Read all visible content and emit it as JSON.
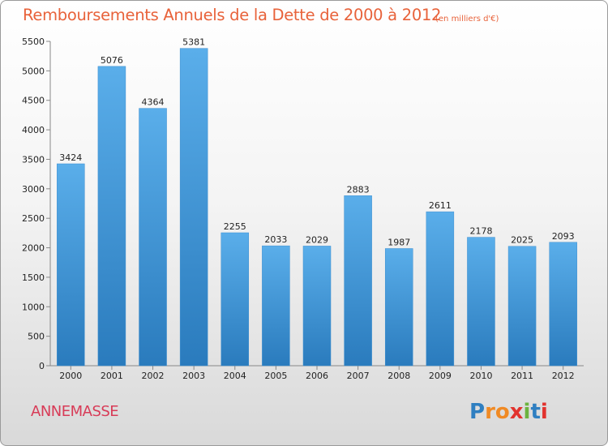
{
  "header": {
    "title": "Remboursements Annuels de la Dette de 2000 à 2012",
    "unit": "(en milliers d'€)"
  },
  "footer": {
    "city": "ANNEMASSE",
    "logo_text": "Proxiti"
  },
  "colors": {
    "title": "#e8623a",
    "city": "#d83b57",
    "bar_top": "#5aaeea",
    "bar_bottom": "#2a7bbd"
  },
  "chart_data": {
    "type": "bar",
    "title": "Remboursements Annuels de la Dette de 2000 à 2012",
    "xlabel": "",
    "ylabel": "",
    "categories": [
      "2000",
      "2001",
      "2002",
      "2003",
      "2004",
      "2005",
      "2006",
      "2007",
      "2008",
      "2009",
      "2010",
      "2011",
      "2012"
    ],
    "values": [
      3424,
      5076,
      4364,
      5381,
      2255,
      2033,
      2029,
      2883,
      1987,
      2611,
      2178,
      2025,
      2093
    ],
    "ylim": [
      0,
      5500
    ],
    "yticks": [
      0,
      500,
      1000,
      1500,
      2000,
      2500,
      3000,
      3500,
      4000,
      4500,
      5000,
      5500
    ],
    "grid": false,
    "legend": "none"
  }
}
